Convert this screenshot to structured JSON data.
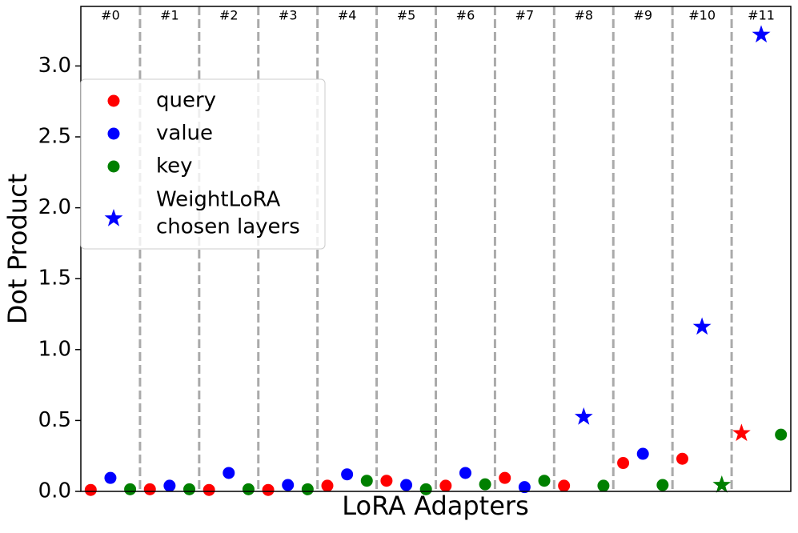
{
  "chart_data": {
    "type": "scatter",
    "xlabel": "LoRA Adapters",
    "ylabel": "Dot Product",
    "categories": [
      "#0",
      "#1",
      "#2",
      "#3",
      "#4",
      "#5",
      "#6",
      "#7",
      "#8",
      "#9",
      "#10",
      "#11"
    ],
    "series": [
      {
        "name": "query",
        "color": "#ff0000",
        "values": [
          0.01,
          0.015,
          0.01,
          0.01,
          0.04,
          0.075,
          0.04,
          0.095,
          0.04,
          0.2,
          0.23,
          0.41
        ],
        "chosen": [
          false,
          false,
          false,
          false,
          false,
          false,
          false,
          false,
          false,
          false,
          false,
          true
        ]
      },
      {
        "name": "value",
        "color": "#0000ff",
        "values": [
          0.095,
          0.04,
          0.13,
          0.045,
          0.12,
          0.045,
          0.13,
          0.03,
          0.525,
          0.265,
          1.16,
          3.22
        ],
        "chosen": [
          false,
          false,
          false,
          false,
          false,
          false,
          false,
          false,
          true,
          false,
          true,
          true
        ]
      },
      {
        "name": "key",
        "color": "#008000",
        "values": [
          0.015,
          0.015,
          0.015,
          0.015,
          0.075,
          0.015,
          0.05,
          0.075,
          0.04,
          0.045,
          0.045,
          0.4
        ],
        "chosen": [
          false,
          false,
          false,
          false,
          false,
          false,
          false,
          false,
          false,
          false,
          true,
          false
        ]
      }
    ],
    "chosen_legend": {
      "lines": [
        "WeightLoRA",
        "chosen layers"
      ],
      "color": "#0000ff",
      "marker": "star"
    },
    "ylim": [
      0,
      3.42
    ],
    "yticks": [
      {
        "value": 0,
        "label": "0.0"
      },
      0.5,
      {
        "value": 1,
        "label": "1.0"
      },
      1.5,
      {
        "value": 2,
        "label": "2.0"
      },
      2.5,
      {
        "value": 3,
        "label": "3.0"
      }
    ],
    "separator_color": "#aaaaaa",
    "legend": "upper left"
  }
}
